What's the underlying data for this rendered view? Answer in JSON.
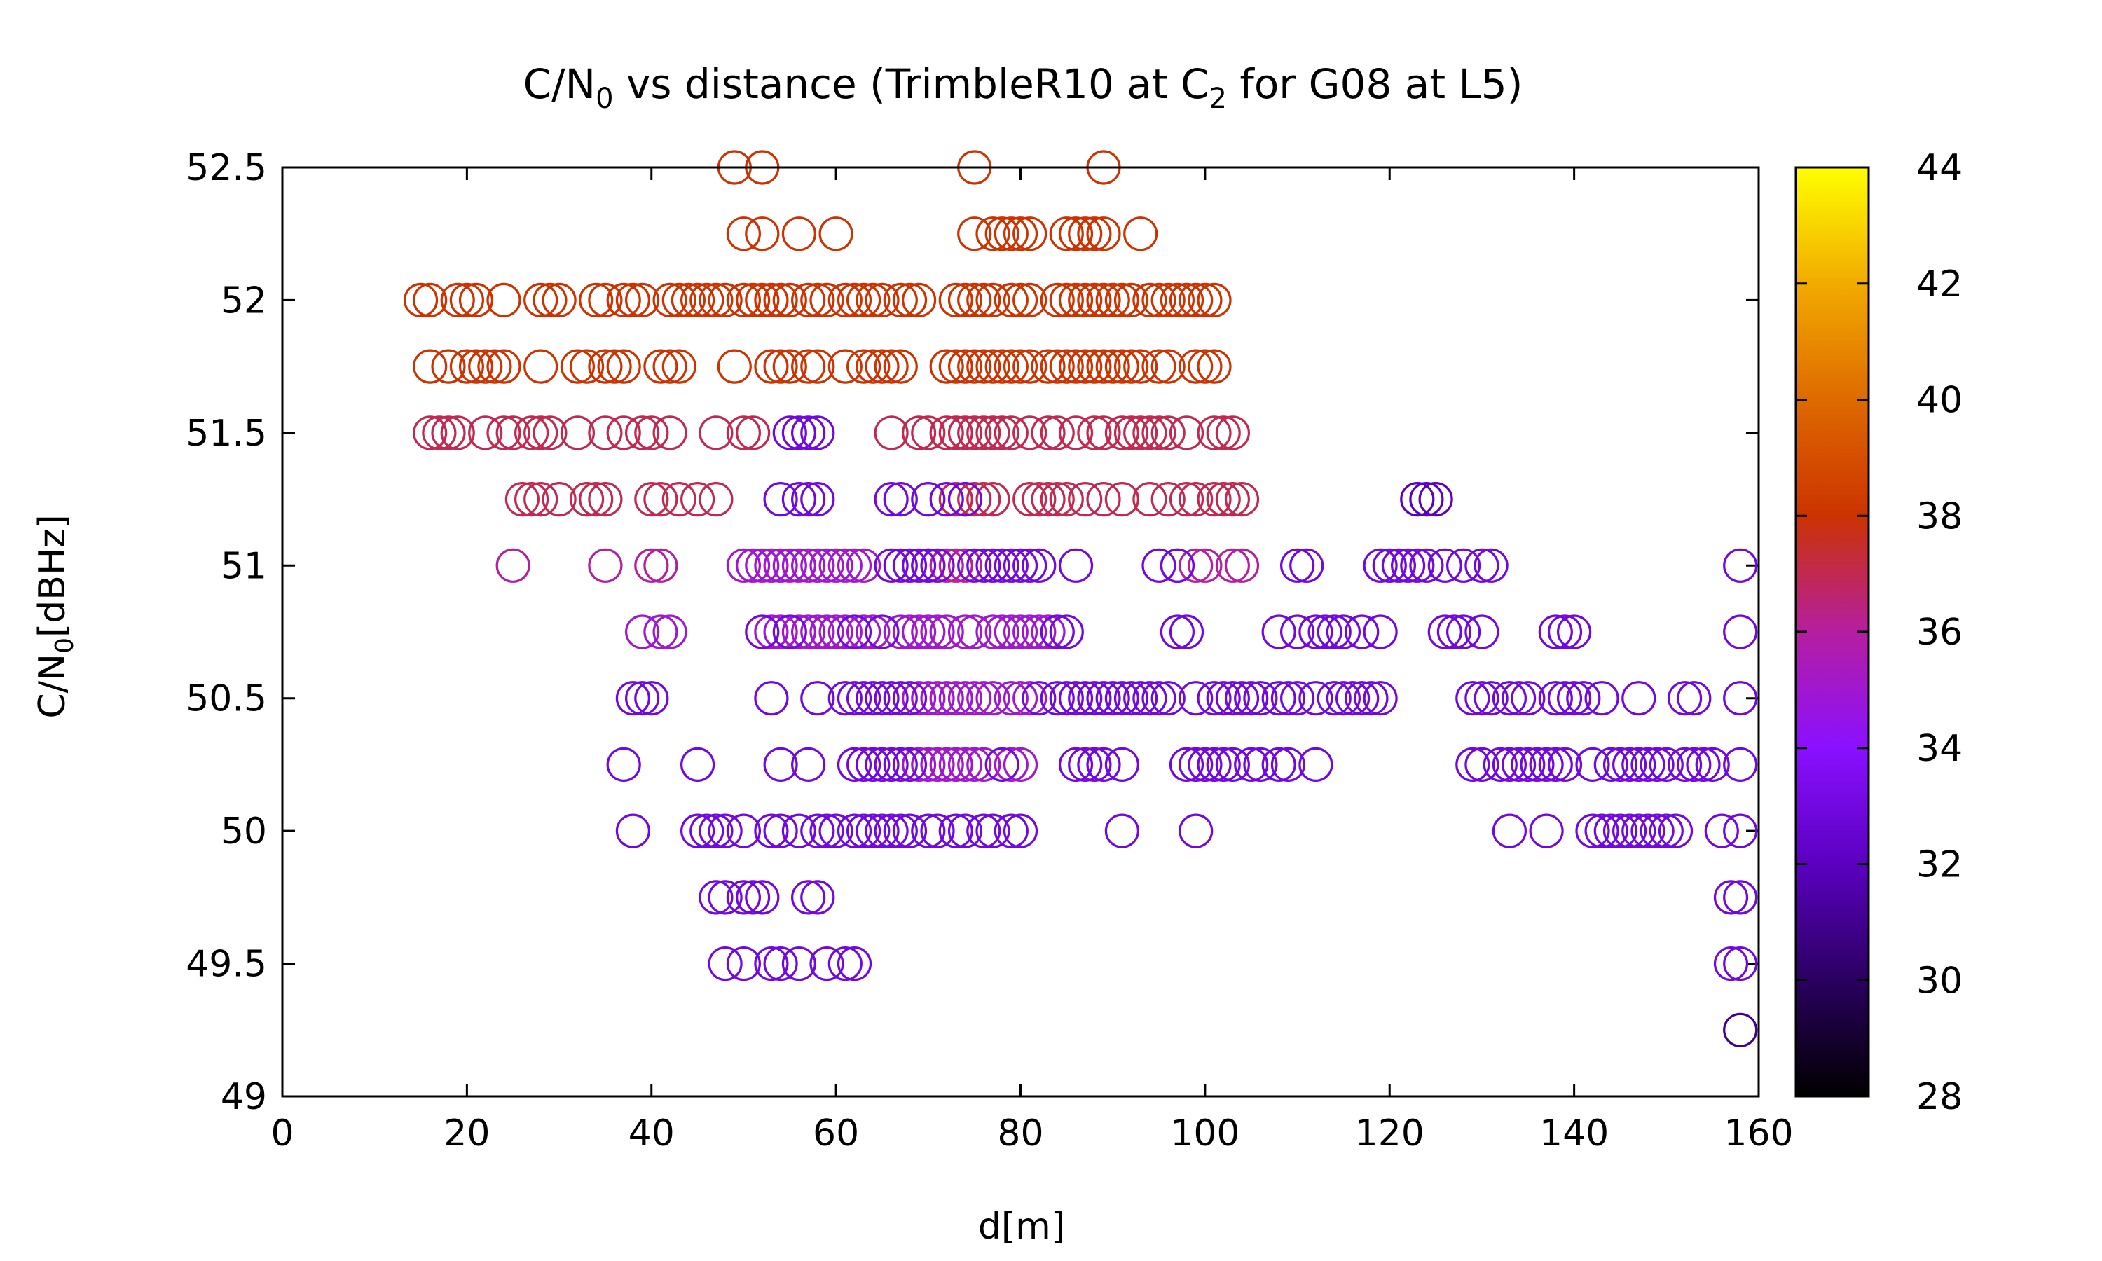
{
  "chart_data": {
    "type": "scatter",
    "title": {
      "main": "C/N",
      "sub": "0",
      "rest": " vs distance (TrimbleR10 at C",
      "sub2": "2",
      "rest2": " for G08 at L5)"
    },
    "xlabel": "d[m]",
    "ylabel": {
      "main": "C/N",
      "sub": "0",
      "rest": "[dBHz]"
    },
    "xlim": [
      0,
      160
    ],
    "ylim": [
      49,
      52.5
    ],
    "x_ticks": [
      "0",
      "20",
      "40",
      "60",
      "80",
      "100",
      "120",
      "140",
      "160"
    ],
    "y_ticks": [
      "49",
      "49.5",
      "50",
      "50.5",
      "51",
      "51.5",
      "52",
      "52.5"
    ],
    "colorbar": {
      "range": [
        28,
        44
      ],
      "ticks": [
        "28",
        "30",
        "32",
        "34",
        "36",
        "38",
        "40",
        "42",
        "44"
      ],
      "stops": [
        "#000000",
        "#2a0060",
        "#5a00c0",
        "#8a10ff",
        "#b61ea0",
        "#cc3300",
        "#de6a00",
        "#f2ab00",
        "#ffff00"
      ]
    },
    "marker": "open-circle",
    "series": [
      {
        "y": 52.5,
        "c": 38,
        "x": [
          49,
          52,
          75,
          89
        ]
      },
      {
        "y": 52.25,
        "c": 38,
        "x": [
          50,
          52,
          56,
          60,
          75,
          77,
          78,
          79,
          80,
          81,
          85,
          86,
          87,
          88,
          89,
          93
        ]
      },
      {
        "y": 52.0,
        "c": 38,
        "x": [
          15,
          16,
          19,
          20,
          21,
          24,
          28,
          29,
          30,
          34,
          35,
          37,
          38,
          39,
          42,
          43,
          44,
          45,
          46,
          47,
          48,
          50,
          51,
          52,
          53,
          54,
          55,
          57,
          58,
          59,
          61,
          62,
          63,
          64,
          65,
          67,
          68,
          69,
          73,
          74,
          75,
          76,
          77,
          79,
          80,
          81,
          84,
          85,
          86,
          87,
          88,
          89,
          90,
          91,
          92,
          94,
          95,
          96,
          97,
          98,
          99,
          100,
          101
        ]
      },
      {
        "y": 51.75,
        "c": 38,
        "x": [
          16,
          18,
          20,
          21,
          22,
          23,
          24,
          28,
          32,
          33,
          35,
          36,
          37,
          41,
          42,
          43,
          49,
          53,
          54,
          55,
          57,
          58,
          61,
          63,
          64,
          65,
          66,
          67,
          72,
          73,
          74,
          75,
          76,
          77,
          78,
          79,
          80,
          81,
          83,
          84,
          85,
          86,
          87,
          88,
          89,
          90,
          91,
          92,
          93,
          95,
          96,
          99,
          100,
          101
        ]
      },
      {
        "y": 51.5,
        "c": 37,
        "x": [
          16,
          17,
          18,
          19,
          22,
          24,
          25,
          27,
          28,
          29,
          32,
          35,
          37,
          39,
          40,
          42,
          47,
          50,
          51,
          66,
          69,
          70,
          72,
          73,
          74,
          75,
          76,
          77,
          78,
          79,
          81,
          83,
          84,
          86,
          88,
          89,
          91,
          92,
          93,
          94,
          95,
          96,
          98,
          101,
          102,
          103
        ]
      },
      {
        "y": 51.5,
        "c": 33,
        "x": [
          55,
          56,
          57,
          58
        ]
      },
      {
        "y": 51.25,
        "c": 37,
        "x": [
          26,
          27,
          28,
          30,
          33,
          34,
          35,
          40,
          41,
          43,
          45,
          47,
          73,
          74,
          75,
          76,
          77,
          81,
          82,
          83,
          84,
          85,
          87,
          89,
          91,
          94,
          96,
          98,
          99,
          101,
          102,
          103,
          104
        ]
      },
      {
        "y": 51.25,
        "c": 33,
        "x": [
          54,
          56,
          57,
          58,
          66,
          67,
          70,
          72,
          74
        ]
      },
      {
        "y": 51.25,
        "c": 32,
        "x": [
          123,
          124,
          125
        ]
      },
      {
        "y": 51.0,
        "c": 36,
        "x": [
          25,
          35,
          40,
          41,
          70,
          72,
          73,
          74,
          97,
          99,
          100,
          103,
          104
        ]
      },
      {
        "y": 51.0,
        "c": 35,
        "x": [
          50,
          51,
          52,
          53,
          54,
          55,
          56,
          57,
          58,
          59,
          60,
          61,
          62,
          63
        ]
      },
      {
        "y": 51.0,
        "c": 33,
        "x": [
          66,
          67,
          68,
          69,
          70,
          71,
          75,
          76,
          77,
          78,
          79,
          80,
          81,
          82,
          86,
          95,
          97,
          110,
          111,
          119,
          120,
          121,
          122,
          123,
          124,
          126,
          128,
          130,
          131,
          158
        ]
      },
      {
        "y": 50.75,
        "c": 35,
        "x": [
          39,
          41,
          42,
          53,
          54,
          56,
          57,
          58,
          59,
          60,
          61,
          63,
          64,
          67,
          68,
          69,
          70,
          71,
          72,
          74,
          75,
          77,
          78,
          79,
          80,
          81,
          82,
          83,
          84
        ]
      },
      {
        "y": 50.75,
        "c": 33,
        "x": [
          52,
          55,
          62,
          65,
          84,
          85,
          97,
          98,
          108,
          110,
          112,
          113,
          114,
          115,
          117,
          119,
          126,
          127,
          128,
          130,
          138,
          139,
          140,
          158
        ]
      },
      {
        "y": 50.5,
        "c": 35,
        "x": [
          69,
          70,
          71,
          72,
          73,
          74,
          75,
          76,
          77,
          79,
          80,
          81
        ]
      },
      {
        "y": 50.5,
        "c": 33,
        "x": [
          38,
          39,
          40,
          53,
          58,
          61,
          62,
          63,
          64,
          65,
          66,
          67,
          68,
          82,
          84,
          85,
          86,
          87,
          88,
          89,
          90,
          91,
          92,
          93,
          94,
          95,
          96,
          99,
          101,
          102,
          103,
          104,
          105,
          106,
          108,
          109,
          110,
          112,
          114,
          115,
          116,
          117,
          118,
          119,
          129,
          130,
          131,
          133,
          134,
          135,
          138,
          139,
          140,
          141,
          143,
          147,
          152,
          153,
          158
        ]
      },
      {
        "y": 50.25,
        "c": 35,
        "x": [
          69,
          70,
          71,
          72,
          73,
          74,
          75,
          76,
          79,
          80
        ]
      },
      {
        "y": 50.25,
        "c": 33,
        "x": [
          37,
          45,
          54,
          57,
          62,
          63,
          64,
          65,
          66,
          67,
          68,
          78,
          86,
          87,
          88,
          89,
          91,
          98,
          99,
          100,
          101,
          102,
          103,
          105,
          106,
          108,
          109,
          112,
          129,
          130,
          132,
          133,
          134,
          135,
          136,
          137,
          138,
          139,
          142,
          144,
          145,
          146,
          147,
          148,
          149,
          150,
          152,
          153,
          154,
          155,
          158
        ]
      },
      {
        "y": 50.0,
        "c": 33,
        "x": [
          38,
          45,
          46,
          47,
          48,
          50,
          53,
          54,
          56,
          58,
          59,
          60,
          62,
          63,
          64,
          65,
          66,
          67,
          68,
          70,
          71,
          73,
          74,
          76,
          77,
          79,
          80,
          91,
          99,
          133,
          137,
          142,
          143,
          144,
          145,
          146,
          147,
          148,
          149,
          150,
          151,
          156,
          158
        ]
      },
      {
        "y": 49.75,
        "c": 33,
        "x": [
          47,
          48,
          50,
          51,
          52,
          57,
          58,
          157,
          158
        ]
      },
      {
        "y": 49.5,
        "c": 33,
        "x": [
          48,
          50,
          53,
          54,
          56,
          59,
          61,
          62,
          157,
          158
        ]
      },
      {
        "y": 49.25,
        "c": 31,
        "x": [
          158
        ]
      }
    ]
  }
}
